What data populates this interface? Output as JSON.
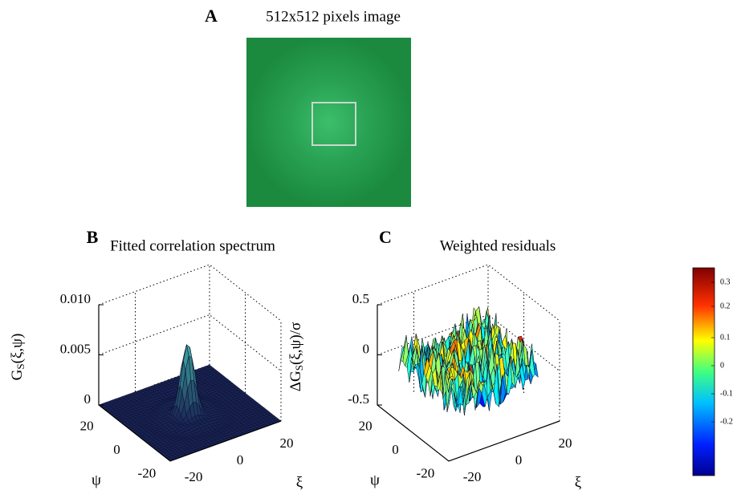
{
  "panels": [
    {
      "label": "A",
      "title": "512x512 pixels image"
    },
    {
      "label": "B",
      "title": "Fitted correlation spectrum",
      "z_label": {
        "main": "G",
        "sub": "S",
        "rest": "(ξ,ψ)"
      },
      "z_ticks": [
        "0.010",
        "0.005",
        "0"
      ],
      "psi_ticks": [
        "20",
        "0",
        "-20"
      ],
      "xi_ticks": [
        "-20",
        "0",
        "20"
      ],
      "psi_label": "ψ",
      "xi_label": "ξ"
    },
    {
      "label": "C",
      "title": "Weighted residuals",
      "z_label": {
        "main": "ΔG",
        "sub": "S",
        "rest": "(ξ,ψ)/σ"
      },
      "z_ticks": [
        "0.5",
        "0",
        "-0.5"
      ],
      "psi_ticks": [
        "20",
        "0",
        "-20"
      ],
      "xi_ticks": [
        "-20",
        "0",
        "20"
      ],
      "psi_label": "ψ",
      "xi_label": "ξ"
    }
  ],
  "colorbar": {
    "ticks": [
      "0.3",
      "0.2",
      "0.1",
      "0",
      "-0.1",
      "-0.2"
    ]
  }
}
